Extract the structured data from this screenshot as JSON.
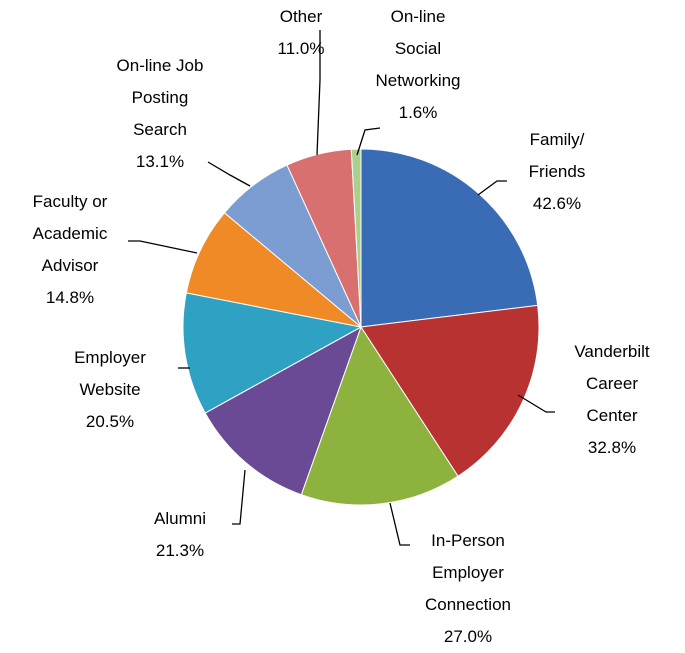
{
  "chart_data": {
    "type": "pie",
    "categories": [
      "Family/\nFriends",
      "Vanderbilt\nCareer\nCenter",
      "In-Person\nEmployer\nConnection",
      "Alumni",
      "Employer\nWebsite",
      "Faculty or\nAcademic\nAdvisor",
      "On-line Job\nPosting\nSearch",
      "Other",
      "On-line\nSocial\nNetworking"
    ],
    "values": [
      42.6,
      32.8,
      27.0,
      21.3,
      20.5,
      14.8,
      13.1,
      11.0,
      1.6
    ],
    "value_labels": [
      "42.6%",
      "32.8%",
      "27.0%",
      "21.3%",
      "20.5%",
      "14.8%",
      "13.1%",
      "11.0%",
      "1.6%"
    ],
    "colors": [
      "#3a6cb5",
      "#b83232",
      "#8db33e",
      "#6a4a94",
      "#2fa2c3",
      "#ef8a26",
      "#7c9dd1",
      "#d97070",
      "#a9d08e"
    ]
  }
}
